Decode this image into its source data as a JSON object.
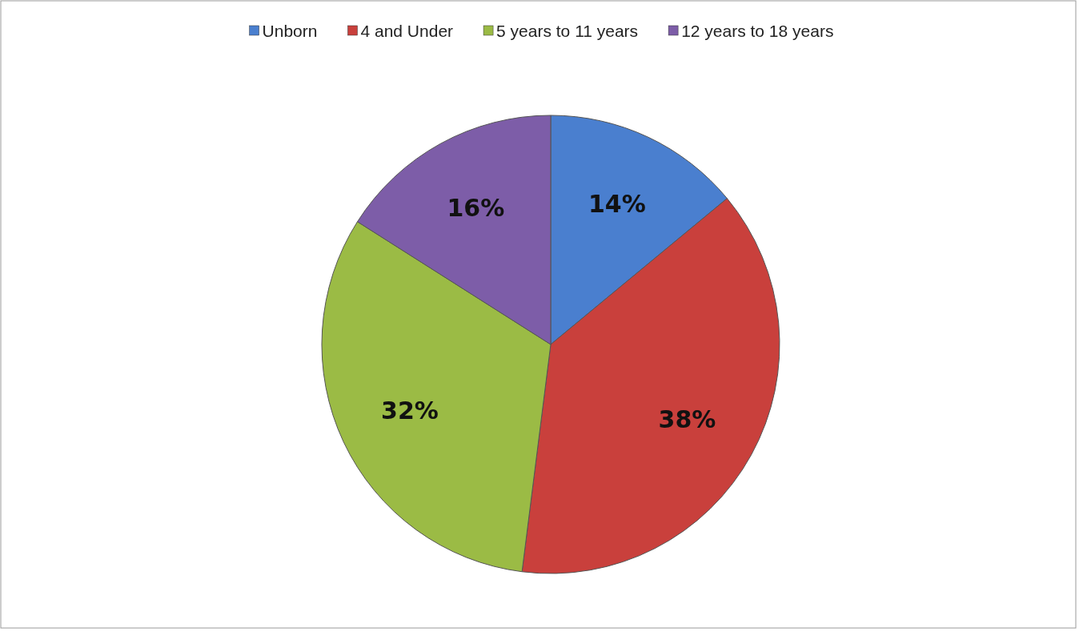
{
  "chart_data": {
    "type": "pie",
    "categories": [
      "Unborn",
      "4 and Under",
      "5 years to 11 years",
      "12 years to 18 years"
    ],
    "values": [
      14,
      38,
      32,
      16
    ],
    "colors": [
      "#4a7fcf",
      "#c9403c",
      "#9bbb45",
      "#7d5da8"
    ],
    "value_labels": [
      "14%",
      "38%",
      "32%",
      "16%"
    ],
    "legend": "top"
  }
}
